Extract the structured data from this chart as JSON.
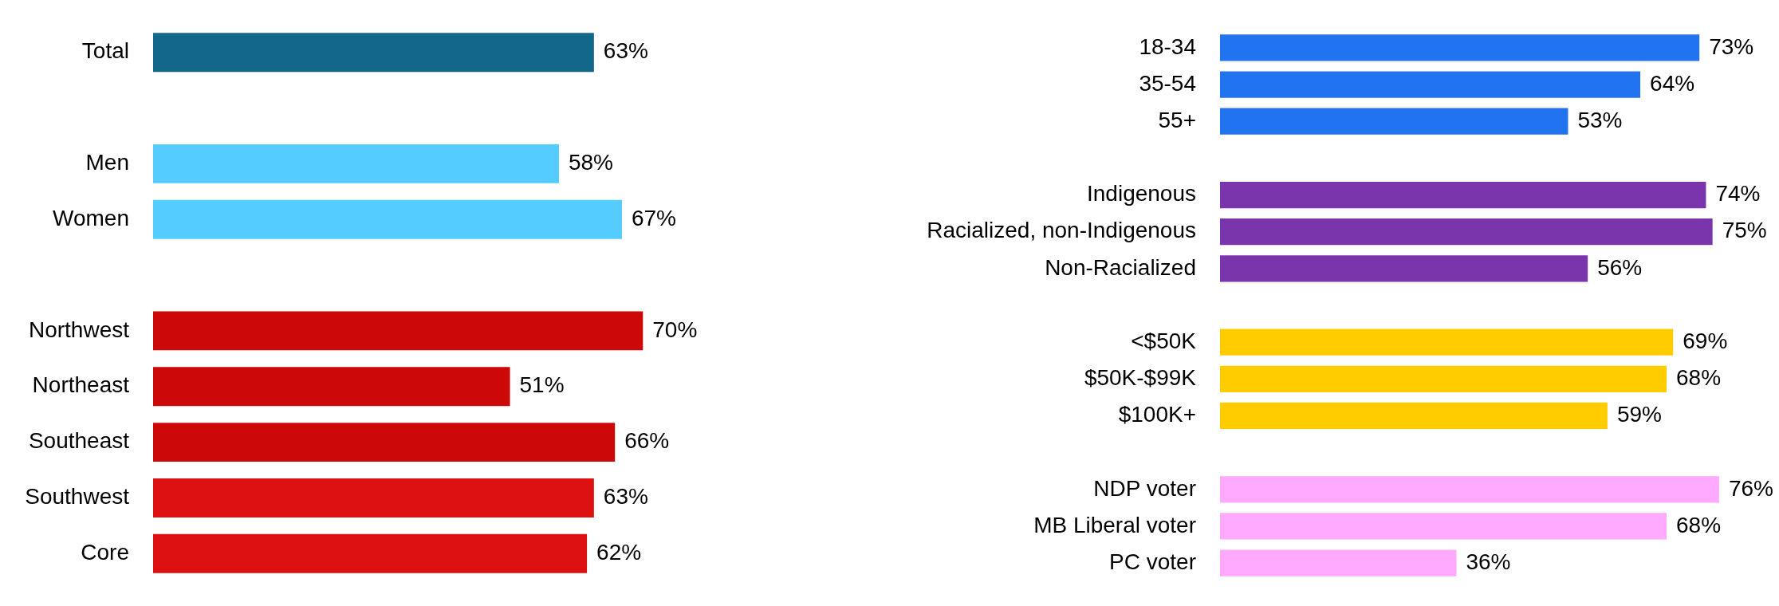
{
  "chart_data": [
    {
      "type": "bar",
      "orientation": "horizontal",
      "legend": false,
      "categories": [
        "Total",
        null,
        "Men",
        "Women",
        null,
        "Northwest",
        "Northeast",
        "Southeast",
        "Southwest",
        "Core"
      ],
      "values": [
        63,
        null,
        58,
        67,
        null,
        70,
        51,
        66,
        63,
        62
      ],
      "value_labels": [
        "63%",
        null,
        "58%",
        "67%",
        null,
        "70%",
        "51%",
        "66%",
        "63%",
        "62%"
      ],
      "colors": [
        "#13688a",
        null,
        "#55ccff",
        "#55ccff",
        null,
        "#cc0808",
        "#cc0808",
        "#cc0808",
        "#dd1111",
        "#dd1111"
      ]
    },
    {
      "type": "bar",
      "orientation": "horizontal",
      "legend": false,
      "categories": [
        "18-34",
        "35-54",
        "55+",
        null,
        "Indigenous",
        "Racialized, non-Indigenous",
        "Non-Racialized",
        null,
        "<$50K",
        "$50K-$99K",
        "$100K+",
        null,
        "NDP voter",
        "MB Liberal voter",
        "PC voter"
      ],
      "values": [
        73,
        64,
        53,
        null,
        74,
        75,
        56,
        null,
        69,
        68,
        59,
        null,
        76,
        68,
        36
      ],
      "value_labels": [
        "73%",
        "64%",
        "53%",
        null,
        "74%",
        "75%",
        "56%",
        null,
        "69%",
        "68%",
        "59%",
        null,
        "76%",
        "68%",
        "36%"
      ],
      "colors": [
        "#2273f0",
        "#2273f0",
        "#2273f0",
        null,
        "#7a35ad",
        "#7a35ad",
        "#7a35ad",
        null,
        "#ffcc00",
        "#ffcc00",
        "#ffcc00",
        null,
        "#ffaaff",
        "#ffaaff",
        "#ffaaff"
      ]
    }
  ]
}
